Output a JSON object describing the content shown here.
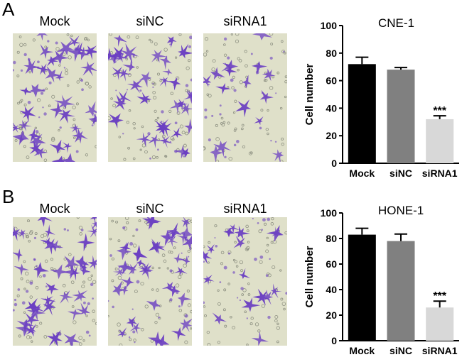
{
  "panels": [
    {
      "letter": "A",
      "images": [
        {
          "label": "Mock",
          "density": "high"
        },
        {
          "label": "siNC",
          "density": "high"
        },
        {
          "label": "siRNA1",
          "density": "low"
        }
      ]
    },
    {
      "letter": "B",
      "images": [
        {
          "label": "Mock",
          "density": "high"
        },
        {
          "label": "siNC",
          "density": "high"
        },
        {
          "label": "siRNA1",
          "density": "low"
        }
      ]
    }
  ],
  "stain_color": "#6b3fc2",
  "chart_data": [
    {
      "type": "bar",
      "title": "CNE-1",
      "ylabel": "Cell number",
      "categories": [
        "Mock",
        "siNC",
        "siRNA1"
      ],
      "values": [
        72,
        68,
        32
      ],
      "errors": [
        5,
        1.5,
        2.5
      ],
      "colors": [
        "#000000",
        "#808080",
        "#d8d8d8"
      ],
      "ylim": [
        0,
        100
      ],
      "yticks": [
        0,
        20,
        40,
        60,
        80,
        100
      ],
      "annotations": [
        {
          "category": "siRNA1",
          "text": "***"
        }
      ]
    },
    {
      "type": "bar",
      "title": "HONE-1",
      "ylabel": "Cell number",
      "categories": [
        "Mock",
        "siNC",
        "siRNA1"
      ],
      "values": [
        83,
        78,
        26
      ],
      "errors": [
        5,
        5.5,
        5
      ],
      "colors": [
        "#000000",
        "#808080",
        "#d8d8d8"
      ],
      "ylim": [
        0,
        100
      ],
      "yticks": [
        0,
        20,
        40,
        60,
        80,
        100
      ],
      "annotations": [
        {
          "category": "siRNA1",
          "text": "***"
        }
      ]
    }
  ]
}
